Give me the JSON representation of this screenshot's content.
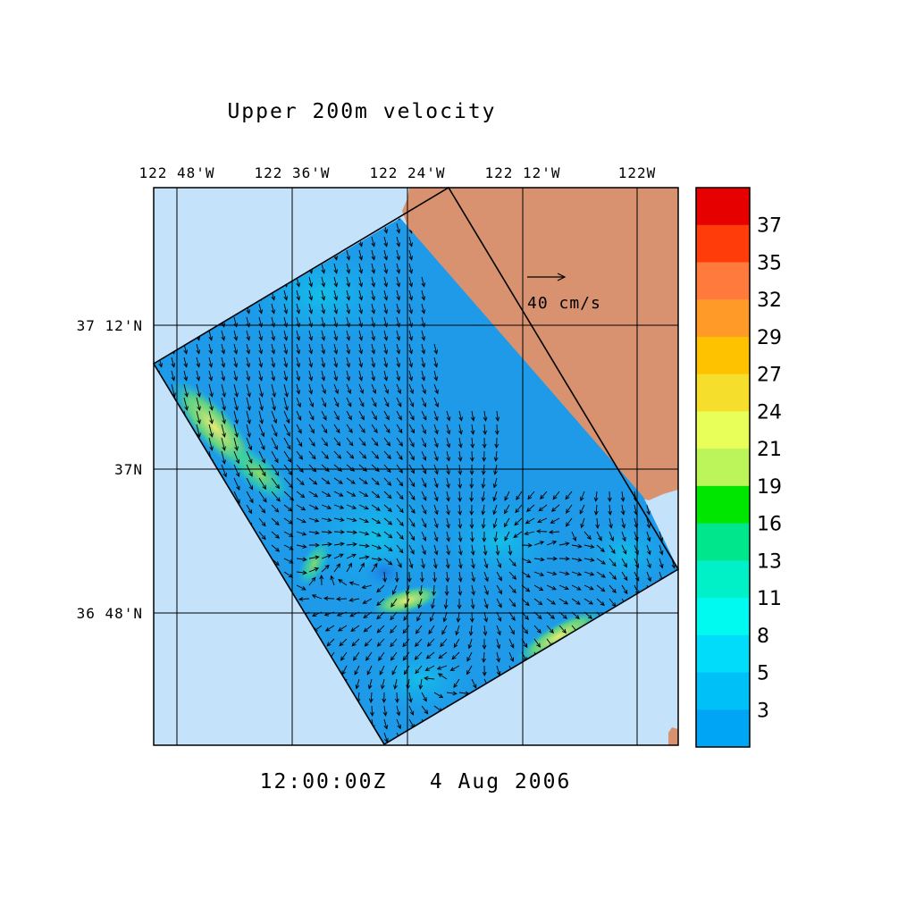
{
  "title": "Upper 200m velocity",
  "timestamp": "12:00:00Z   4 Aug 2006",
  "lon_labels": [
    "122 48'W",
    "122 36'W",
    "122 24'W",
    "122 12'W",
    "122W"
  ],
  "lat_labels": [
    "37 12'N",
    "37N",
    "36 48'N"
  ],
  "reference_vector_label": "40 cm/s",
  "reference_vector_speed_cm_s": 40,
  "colorbar": {
    "labels": [
      "37",
      "35",
      "32",
      "29",
      "27",
      "24",
      "21",
      "19",
      "16",
      "13",
      "11",
      "8",
      "5",
      "3"
    ],
    "colors": [
      "#e60000",
      "#ff3c0a",
      "#ff7a3c",
      "#ff9a28",
      "#ffc200",
      "#f6de2c",
      "#e8ff5a",
      "#bcf55a",
      "#00e600",
      "#00e68c",
      "#00f0c8",
      "#00faf0",
      "#00dcfa",
      "#00c0f8",
      "#00a6f5"
    ]
  },
  "map_colors": {
    "ocean_background": "#c4e2fa",
    "land": "#d99270",
    "domain_base": "#1e9ae8",
    "domain_high_speed": "#e8f060",
    "grid_and_arrows": "#000000"
  }
}
